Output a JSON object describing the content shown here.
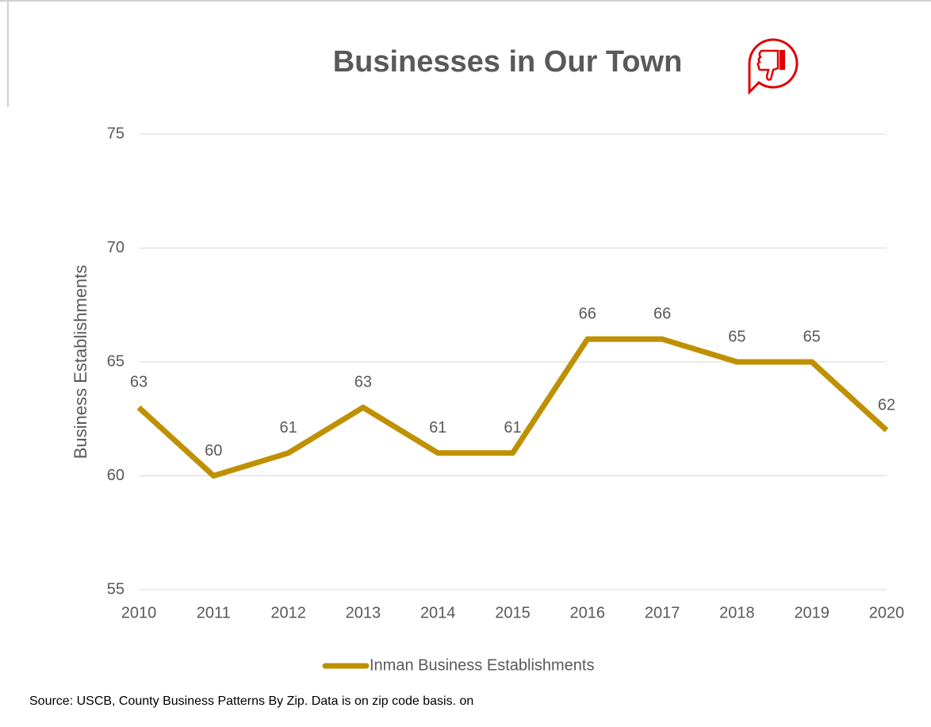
{
  "chart_data": {
    "type": "line",
    "title": "Businesses in Our Town",
    "y_label": "Business Establishments",
    "categories": [
      "2010",
      "2011",
      "2012",
      "2013",
      "2014",
      "2015",
      "2016",
      "2017",
      "2018",
      "2019",
      "2020"
    ],
    "series": [
      {
        "name": "Inman Business Establishments",
        "color": "#bf9000",
        "values": [
          63,
          60,
          61,
          63,
          61,
          61,
          66,
          66,
          65,
          65,
          62
        ]
      }
    ],
    "ylim": [
      55,
      75
    ],
    "yticks": [
      55,
      60,
      65,
      70,
      75
    ],
    "grid": true,
    "legend": "bottom",
    "source": "Source: USCB, County Business Patterns By Zip. Data is on zip code basis. on"
  }
}
